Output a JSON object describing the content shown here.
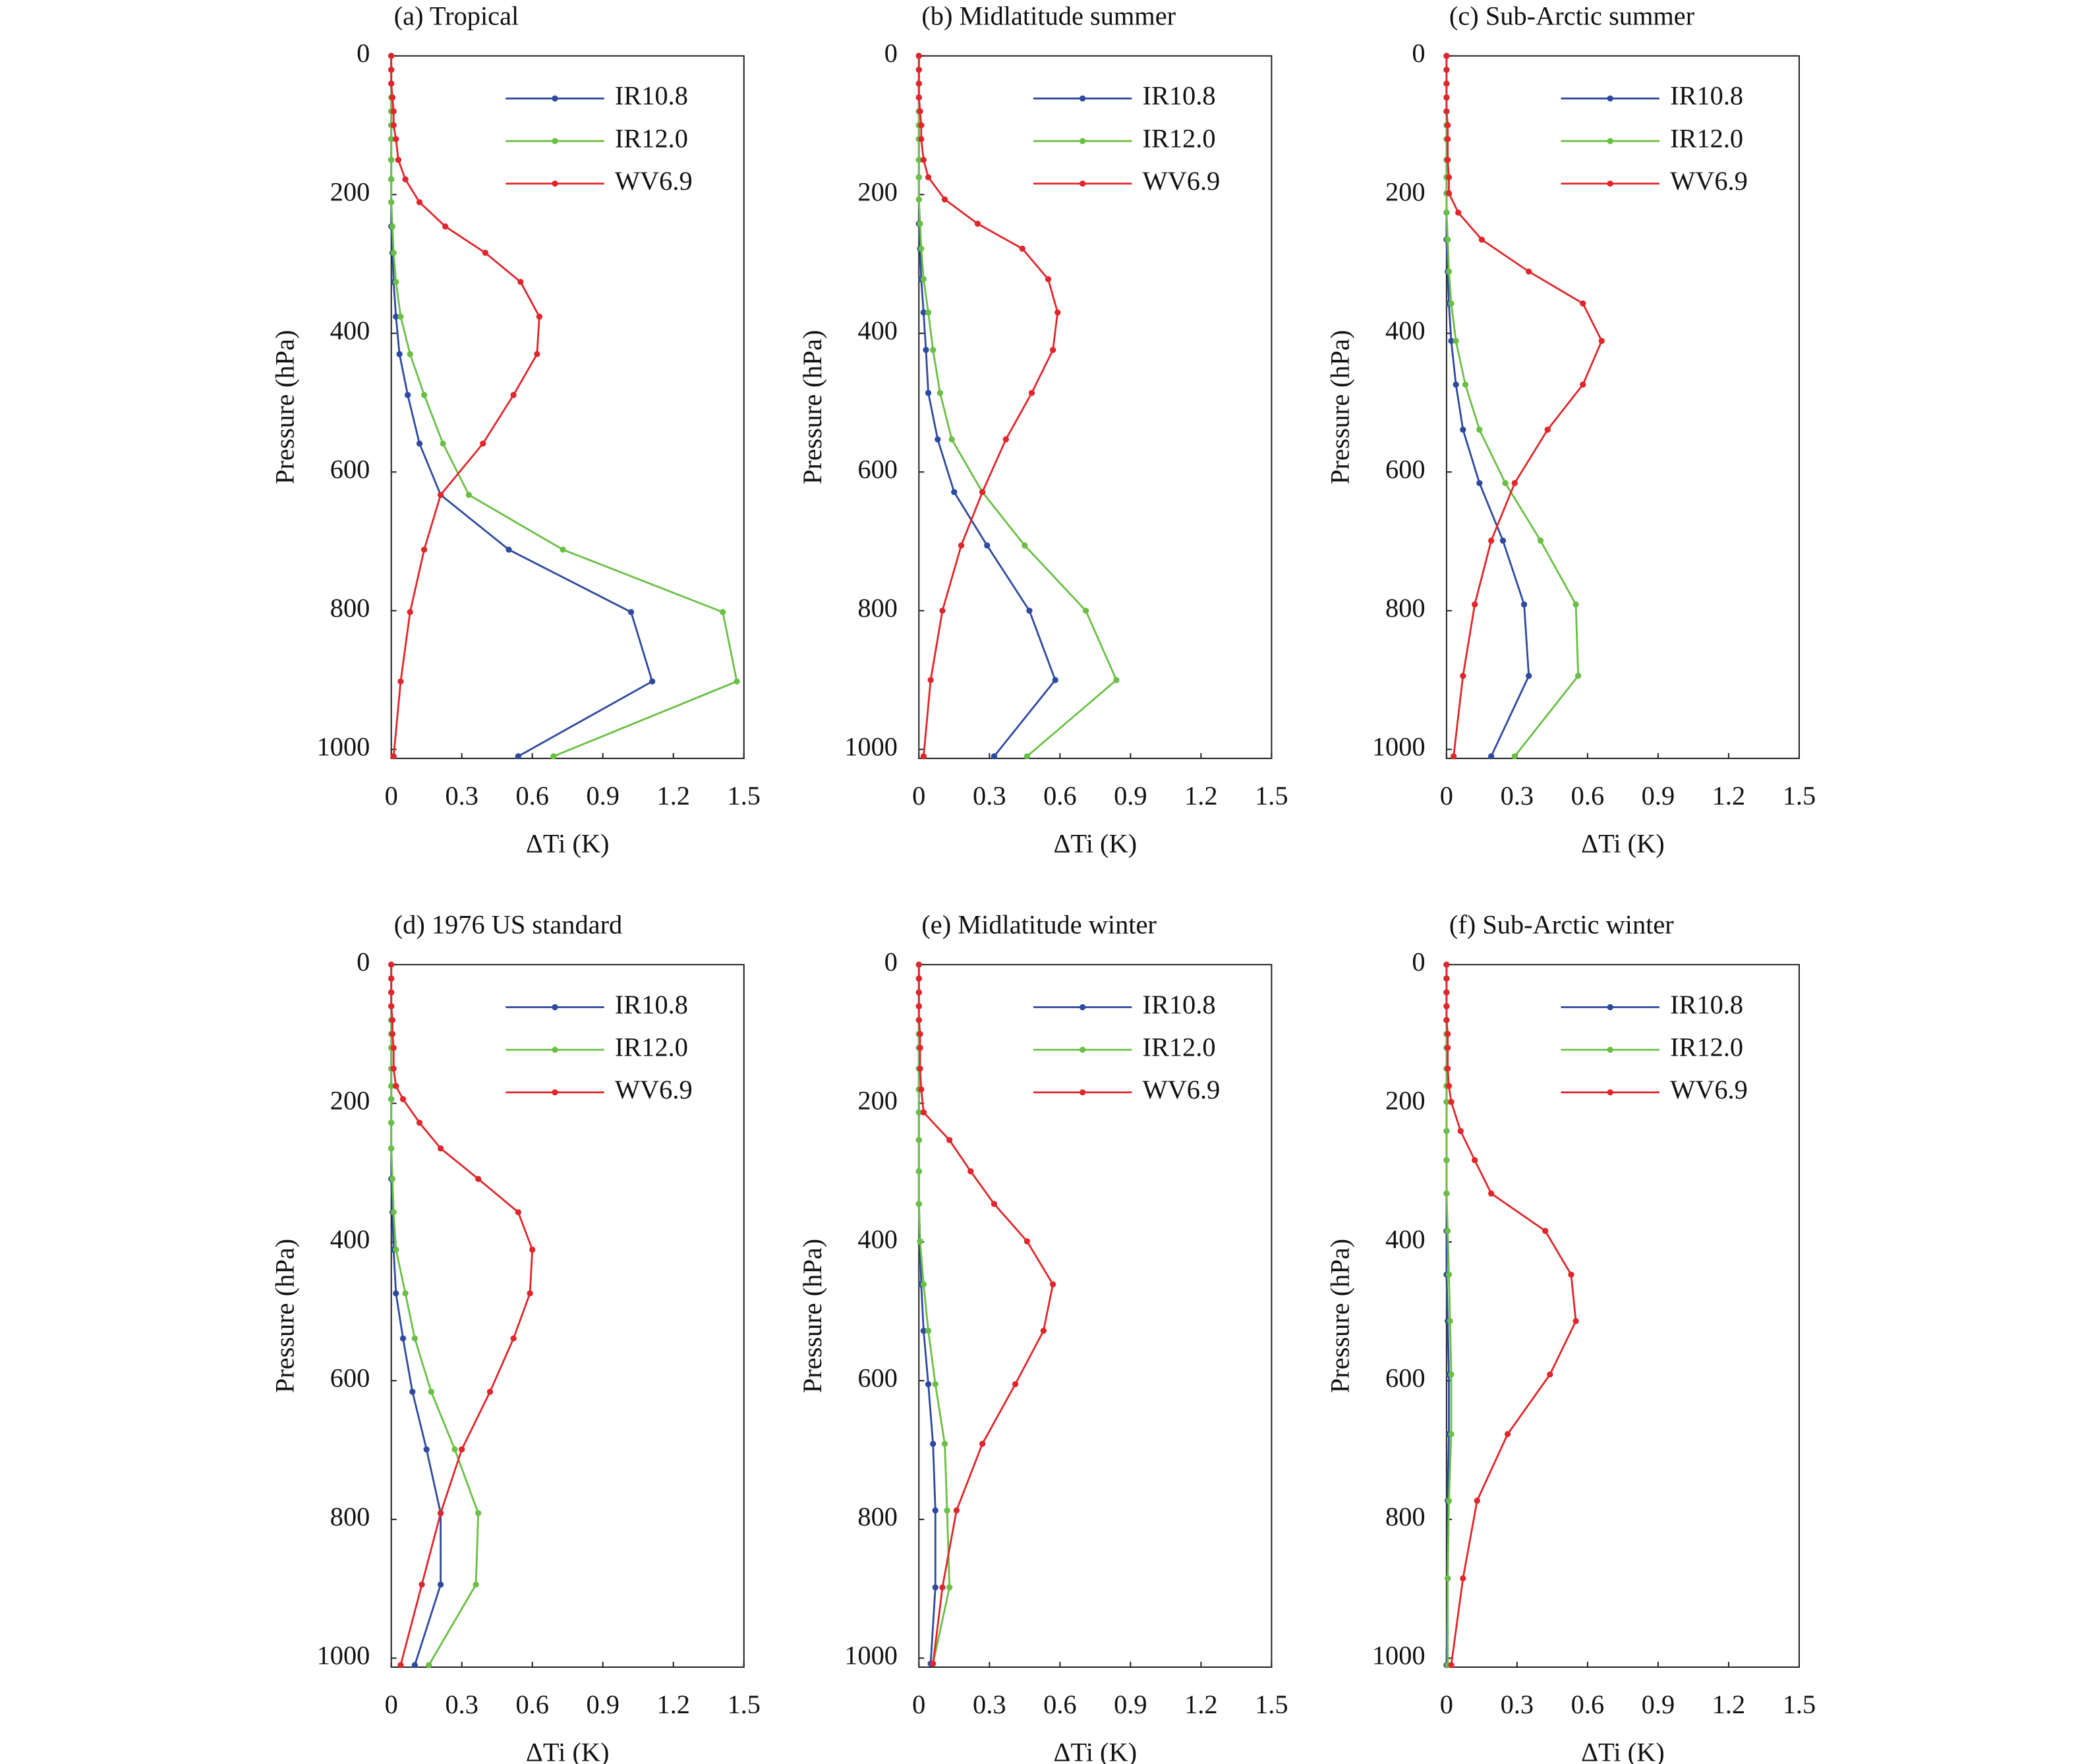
{
  "chart_data": [
    {
      "type": "line",
      "title": "(a) Tropical",
      "xlabel": "ΔTi (K)",
      "ylabel": "Pressure (hPa)",
      "xlim": [
        0,
        1.5
      ],
      "xticks": [
        0,
        0.3,
        0.6,
        0.9,
        1.2,
        1.5
      ],
      "ylim": [
        0,
        1013
      ],
      "yticks": [
        0,
        200,
        400,
        600,
        800,
        1000
      ],
      "y_inverted": true,
      "legend": "upper right",
      "y": [
        0,
        20,
        40,
        60,
        80,
        100,
        120,
        150,
        178,
        211,
        246,
        284,
        326,
        376,
        430,
        489,
        559,
        633,
        712,
        802,
        902,
        1010
      ],
      "series": [
        {
          "name": "IR10.8",
          "color": "#2e4a9e",
          "values": [
            0,
            0,
            0,
            0,
            0,
            0,
            0,
            0,
            0,
            0,
            0,
            0.005,
            0.01,
            0.02,
            0.035,
            0.07,
            0.12,
            0.21,
            0.5,
            1.02,
            1.11,
            0.54
          ]
        },
        {
          "name": "IR12.0",
          "color": "#6abf45",
          "values": [
            0,
            0,
            0,
            0,
            0,
            0,
            0,
            0,
            0,
            0,
            0.005,
            0.01,
            0.02,
            0.04,
            0.08,
            0.14,
            0.22,
            0.33,
            0.73,
            1.41,
            1.47,
            0.69
          ]
        },
        {
          "name": "WV6.9",
          "color": "#e0262b",
          "values": [
            0,
            0,
            0,
            0.005,
            0.01,
            0.01,
            0.02,
            0.03,
            0.06,
            0.12,
            0.23,
            0.4,
            0.55,
            0.63,
            0.62,
            0.52,
            0.39,
            0.21,
            0.14,
            0.08,
            0.04,
            0.01
          ]
        }
      ]
    },
    {
      "type": "line",
      "title": "(b) Midlatitude summer",
      "xlabel": "ΔTi (K)",
      "ylabel": "Pressure (hPa)",
      "xlim": [
        0,
        1.5
      ],
      "xticks": [
        0,
        0.3,
        0.6,
        0.9,
        1.2,
        1.5
      ],
      "ylim": [
        0,
        1013
      ],
      "yticks": [
        0,
        200,
        400,
        600,
        800,
        1000
      ],
      "y_inverted": true,
      "legend": "upper right",
      "y": [
        0,
        20,
        40,
        60,
        80,
        100,
        120,
        150,
        175,
        207,
        242,
        278,
        322,
        370,
        424,
        486,
        553,
        629,
        706,
        800,
        900,
        1010
      ],
      "series": [
        {
          "name": "IR10.8",
          "color": "#2e4a9e",
          "values": [
            0,
            0,
            0,
            0,
            0,
            0,
            0,
            0,
            0,
            0,
            0,
            0.005,
            0.01,
            0.02,
            0.03,
            0.04,
            0.08,
            0.15,
            0.29,
            0.47,
            0.58,
            0.32
          ]
        },
        {
          "name": "IR12.0",
          "color": "#6abf45",
          "values": [
            0,
            0,
            0,
            0,
            0,
            0,
            0,
            0,
            0,
            0,
            0.005,
            0.01,
            0.02,
            0.04,
            0.06,
            0.09,
            0.14,
            0.27,
            0.45,
            0.71,
            0.84,
            0.46
          ]
        },
        {
          "name": "WV6.9",
          "color": "#e0262b",
          "values": [
            0,
            0,
            0,
            0,
            0.005,
            0.01,
            0.01,
            0.02,
            0.04,
            0.11,
            0.25,
            0.44,
            0.55,
            0.59,
            0.57,
            0.48,
            0.37,
            0.27,
            0.18,
            0.1,
            0.05,
            0.02
          ]
        }
      ]
    },
    {
      "type": "line",
      "title": "(c) Sub-Arctic summer",
      "xlabel": "ΔTi (K)",
      "ylabel": "Pressure (hPa)",
      "xlim": [
        0,
        1.5
      ],
      "xticks": [
        0,
        0.3,
        0.6,
        0.9,
        1.2,
        1.5
      ],
      "ylim": [
        0,
        1013
      ],
      "yticks": [
        0,
        200,
        400,
        600,
        800,
        1000
      ],
      "y_inverted": true,
      "legend": "upper right",
      "y": [
        0,
        20,
        40,
        60,
        80,
        100,
        120,
        150,
        175,
        198,
        226,
        265,
        311,
        357,
        411,
        474,
        539,
        616,
        699,
        791,
        894,
        1010
      ],
      "series": [
        {
          "name": "IR10.8",
          "color": "#2e4a9e",
          "values": [
            0,
            0,
            0,
            0,
            0,
            0,
            0,
            0,
            0,
            0,
            0,
            0,
            0.005,
            0.01,
            0.02,
            0.04,
            0.07,
            0.14,
            0.24,
            0.33,
            0.35,
            0.19
          ]
        },
        {
          "name": "IR12.0",
          "color": "#6abf45",
          "values": [
            0,
            0,
            0,
            0,
            0,
            0,
            0,
            0,
            0,
            0,
            0,
            0.005,
            0.01,
            0.02,
            0.04,
            0.08,
            0.14,
            0.25,
            0.4,
            0.55,
            0.56,
            0.29
          ]
        },
        {
          "name": "WV6.9",
          "color": "#e0262b",
          "values": [
            0,
            0,
            0,
            0,
            0,
            0.005,
            0.005,
            0.005,
            0.01,
            0.01,
            0.05,
            0.15,
            0.35,
            0.58,
            0.66,
            0.58,
            0.43,
            0.29,
            0.19,
            0.12,
            0.07,
            0.03
          ]
        }
      ]
    },
    {
      "type": "line",
      "title": "(d) 1976 US standard",
      "xlabel": "ΔTi (K)",
      "ylabel": "Pressure (hPa)",
      "xlim": [
        0,
        1.5
      ],
      "xticks": [
        0,
        0.3,
        0.6,
        0.9,
        1.2,
        1.5
      ],
      "ylim": [
        0,
        1013
      ],
      "yticks": [
        0,
        200,
        400,
        600,
        800,
        1000
      ],
      "y_inverted": true,
      "legend": "upper right",
      "y": [
        0,
        20,
        40,
        60,
        80,
        100,
        120,
        150,
        175,
        194,
        228,
        265,
        309,
        357,
        411,
        474,
        539,
        616,
        699,
        791,
        894,
        1010
      ],
      "series": [
        {
          "name": "IR10.8",
          "color": "#2e4a9e",
          "values": [
            0,
            0,
            0,
            0,
            0,
            0,
            0,
            0,
            0,
            0,
            0,
            0,
            0,
            0.005,
            0.01,
            0.02,
            0.05,
            0.09,
            0.15,
            0.21,
            0.21,
            0.1
          ]
        },
        {
          "name": "IR12.0",
          "color": "#6abf45",
          "values": [
            0,
            0,
            0,
            0,
            0,
            0,
            0,
            0,
            0,
            0,
            0,
            0,
            0.005,
            0.01,
            0.02,
            0.06,
            0.1,
            0.17,
            0.27,
            0.37,
            0.36,
            0.16
          ]
        },
        {
          "name": "WV6.9",
          "color": "#e0262b",
          "values": [
            0,
            0,
            0,
            0,
            0.005,
            0.005,
            0.01,
            0.01,
            0.02,
            0.05,
            0.12,
            0.21,
            0.37,
            0.54,
            0.6,
            0.59,
            0.52,
            0.42,
            0.3,
            0.21,
            0.13,
            0.04
          ]
        }
      ]
    },
    {
      "type": "line",
      "title": "(e) Midlatitude winter",
      "xlabel": "ΔTi (K)",
      "ylabel": "Pressure (hPa)",
      "xlim": [
        0,
        1.5
      ],
      "xticks": [
        0,
        0.3,
        0.6,
        0.9,
        1.2,
        1.5
      ],
      "ylim": [
        0,
        1013
      ],
      "yticks": [
        0,
        200,
        400,
        600,
        800,
        1000
      ],
      "y_inverted": true,
      "legend": "upper right",
      "y": [
        0,
        20,
        40,
        60,
        80,
        100,
        120,
        150,
        180,
        213,
        253,
        298,
        345,
        399,
        461,
        528,
        605,
        691,
        787,
        898,
        1008
      ],
      "series": [
        {
          "name": "IR10.8",
          "color": "#2e4a9e",
          "values": [
            0,
            0,
            0,
            0,
            0,
            0,
            0,
            0,
            0,
            0,
            0,
            0,
            0,
            0.005,
            0.01,
            0.02,
            0.04,
            0.06,
            0.07,
            0.07,
            0.05
          ]
        },
        {
          "name": "IR12.0",
          "color": "#6abf45",
          "values": [
            0,
            0,
            0,
            0,
            0,
            0,
            0,
            0,
            0,
            0,
            0,
            0,
            0,
            0.005,
            0.02,
            0.04,
            0.07,
            0.11,
            0.12,
            0.13,
            0.06
          ]
        },
        {
          "name": "WV6.9",
          "color": "#e0262b",
          "values": [
            0,
            0,
            0,
            0,
            0,
            0.005,
            0.005,
            0.005,
            0.01,
            0.02,
            0.13,
            0.22,
            0.32,
            0.46,
            0.57,
            0.53,
            0.41,
            0.27,
            0.16,
            0.1,
            0.06
          ]
        }
      ]
    },
    {
      "type": "line",
      "title": "(f) Sub-Arctic winter",
      "xlabel": "ΔTi (K)",
      "ylabel": "Pressure (hPa)",
      "xlim": [
        0,
        1.5
      ],
      "xticks": [
        0,
        0.3,
        0.6,
        0.9,
        1.2,
        1.5
      ],
      "ylim": [
        0,
        1013
      ],
      "yticks": [
        0,
        200,
        400,
        600,
        800,
        1000
      ],
      "y_inverted": true,
      "legend": "upper right",
      "y": [
        0,
        20,
        40,
        60,
        80,
        100,
        120,
        150,
        175,
        198,
        240,
        282,
        330,
        384,
        447,
        514,
        591,
        677,
        773,
        885,
        1010
      ],
      "series": [
        {
          "name": "IR10.8",
          "color": "#2e4a9e",
          "values": [
            0,
            0,
            0,
            0,
            0,
            0,
            0,
            0,
            0,
            0,
            0,
            0,
            0,
            0,
            0,
            0.005,
            0.01,
            0.01,
            0.005,
            0.005,
            0
          ]
        },
        {
          "name": "IR12.0",
          "color": "#6abf45",
          "values": [
            0,
            0,
            0,
            0,
            0,
            0,
            0,
            0,
            0,
            0,
            0,
            0,
            0,
            0.005,
            0.01,
            0.015,
            0.02,
            0.02,
            0.01,
            0.005,
            0.005
          ]
        },
        {
          "name": "WV6.9",
          "color": "#e0262b",
          "values": [
            0,
            0,
            0,
            0,
            0,
            0.005,
            0.005,
            0.005,
            0.01,
            0.02,
            0.06,
            0.12,
            0.19,
            0.42,
            0.53,
            0.55,
            0.44,
            0.26,
            0.13,
            0.07,
            0.02
          ]
        }
      ]
    }
  ]
}
